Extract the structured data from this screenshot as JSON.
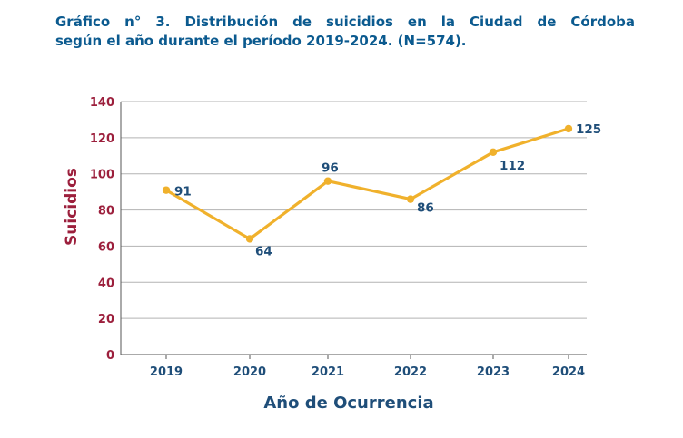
{
  "title": {
    "line1": "Gráfico n° 3. Distribución de suicidios en la Ciudad de Córdoba",
    "line2": "según el año durante el período 2019-2024. (N=574)."
  },
  "chart_data": {
    "type": "line",
    "categories": [
      "2019",
      "2020",
      "2021",
      "2022",
      "2023",
      "2024"
    ],
    "values": [
      91,
      64,
      96,
      86,
      112,
      125
    ],
    "data_labels": [
      "91",
      "64",
      "96",
      "86",
      "112",
      "125"
    ],
    "xlabel": "Año de Ocurrencia",
    "ylabel": "Suicidios",
    "ylim": [
      0,
      140
    ],
    "yticks": [
      "0",
      "20",
      "40",
      "60",
      "80",
      "100",
      "120",
      "140"
    ],
    "grid": true,
    "colors": {
      "line": "#f0b12c",
      "grid": "#b3b3b3",
      "axis": "#555555",
      "title": "#0b5a8f",
      "ytick": "#9c1f3c",
      "xtick": "#1f4e79"
    }
  }
}
